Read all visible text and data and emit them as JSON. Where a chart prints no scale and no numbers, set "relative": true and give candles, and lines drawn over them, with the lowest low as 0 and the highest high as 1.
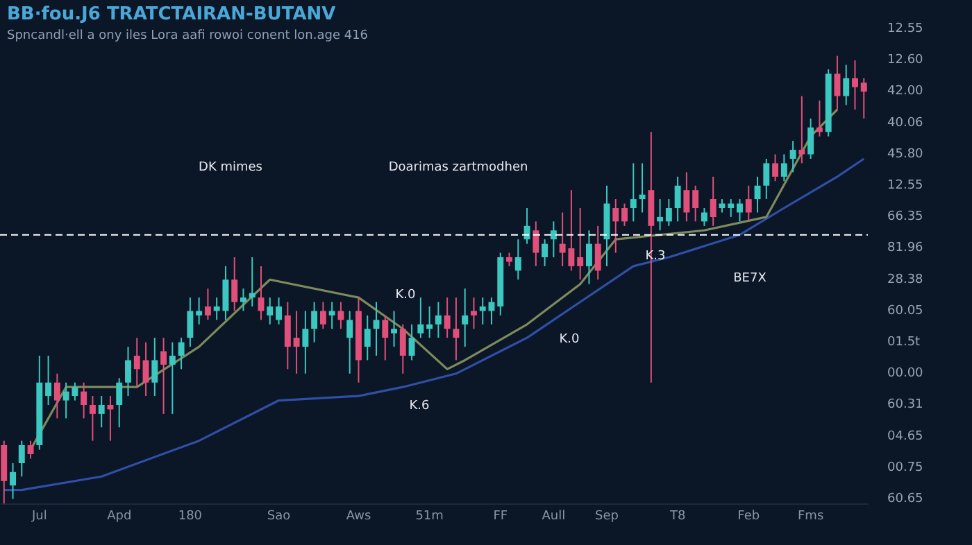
{
  "chart_data": {
    "type": "candlestick",
    "relative": true,
    "title": "BB·fou.J6 TRATCTAIRAN-BUTANV",
    "subtitle": "Spncandl·ell a ony iles Lora aafi rowoi conent lon.age 416",
    "categories": [
      null,
      null,
      null,
      null,
      "Jul",
      null,
      null,
      null,
      null,
      null,
      null,
      null,
      null,
      "Apd",
      null,
      null,
      null,
      null,
      null,
      null,
      null,
      "180",
      null,
      null,
      null,
      null,
      null,
      null,
      null,
      null,
      null,
      "Sao",
      null,
      null,
      null,
      null,
      null,
      null,
      null,
      null,
      "Aws",
      null,
      null,
      null,
      null,
      null,
      null,
      null,
      "51m",
      null,
      null,
      null,
      null,
      null,
      null,
      null,
      "FF",
      null,
      null,
      null,
      null,
      null,
      "Aull",
      null,
      null,
      null,
      null,
      null,
      "Sep",
      null,
      null,
      null,
      null,
      null,
      null,
      null,
      "T8",
      null,
      null,
      null,
      null,
      null,
      null,
      null,
      "Feb",
      null,
      null,
      null,
      null,
      null,
      null,
      "Fms",
      null,
      null,
      null,
      null,
      null,
      null
    ],
    "colors": [
      "#e0507a",
      "#3cc8c0",
      "#3cc8c0",
      "#e0507a",
      "#3cc8c0",
      "#3cc8c0",
      "#e0507a",
      "#3cc8c0",
      "#3cc8c0",
      "#e0507a",
      "#e0507a",
      "#3cc8c0",
      "#e0507a",
      "#3cc8c0",
      "#3cc8c0",
      "#e0507a",
      "#e0507a",
      "#3cc8c0",
      "#e0507a",
      "#3cc8c0",
      "#3cc8c0",
      "#3cc8c0",
      "#3cc8c0",
      "#e0507a",
      "#3cc8c0",
      "#3cc8c0",
      "#e0507a",
      "#3cc8c0",
      "#3cc8c0",
      "#e0507a",
      "#3cc8c0",
      "#3cc8c0",
      "#e0507a",
      "#e0507a",
      "#3cc8c0",
      "#3cc8c0",
      "#e0507a",
      "#3cc8c0",
      "#e0507a",
      "#3cc8c0",
      "#e0507a",
      "#3cc8c0",
      "#3cc8c0",
      "#e0507a",
      "#3cc8c0",
      "#e0507a",
      "#3cc8c0",
      "#3cc8c0",
      "#3cc8c0",
      "#3cc8c0",
      "#e0507a",
      "#e0507a",
      "#3cc8c0",
      "#e0507a",
      "#3cc8c0",
      "#3cc8c0",
      "#3cc8c0",
      "#e0507a",
      "#3cc8c0",
      "#3cc8c0",
      "#e0507a",
      "#3cc8c0",
      "#3cc8c0",
      "#e0507a",
      "#e0507a",
      "#e0507a",
      "#3cc8c0",
      "#e0507a",
      "#3cc8c0",
      "#e0507a",
      "#e0507a",
      "#3cc8c0",
      "#3cc8c0",
      "#e0507a",
      "#3cc8c0",
      "#3cc8c0",
      "#3cc8c0",
      "#e0507a",
      "#e0507a",
      "#3cc8c0",
      "#e0507a",
      "#3cc8c0",
      "#3cc8c0",
      "#3cc8c0",
      "#e0507a",
      "#3cc8c0",
      "#3cc8c0",
      "#e0507a",
      "#3cc8c0",
      "#3cc8c0",
      "#e0507a",
      "#3cc8c0",
      "#e0507a",
      "#3cc8c0",
      "#e0507a",
      "#3cc8c0",
      "#e0507a",
      "#e0507a"
    ],
    "ohlc": [
      [
        0.13,
        0.14,
        0,
        0.05
      ],
      [
        0.04,
        0.09,
        0.01,
        0.07
      ],
      [
        0.09,
        0.14,
        0.06,
        0.13
      ],
      [
        0.13,
        0.14,
        0.1,
        0.11
      ],
      [
        0.13,
        0.33,
        0.12,
        0.27
      ],
      [
        0.24,
        0.33,
        0.22,
        0.27
      ],
      [
        0.27,
        0.29,
        0.19,
        0.23
      ],
      [
        0.23,
        0.27,
        0.19,
        0.25
      ],
      [
        0.24,
        0.27,
        0.23,
        0.26
      ],
      [
        0.25,
        0.27,
        0.19,
        0.22
      ],
      [
        0.22,
        0.24,
        0.14,
        0.2
      ],
      [
        0.2,
        0.24,
        0.17,
        0.22
      ],
      [
        0.22,
        0.24,
        0.14,
        0.21
      ],
      [
        0.22,
        0.28,
        0.17,
        0.27
      ],
      [
        0.27,
        0.35,
        0.24,
        0.32
      ],
      [
        0.33,
        0.37,
        0.26,
        0.3
      ],
      [
        0.32,
        0.36,
        0.24,
        0.27
      ],
      [
        0.27,
        0.37,
        0.24,
        0.32
      ],
      [
        0.34,
        0.37,
        0.2,
        0.31
      ],
      [
        0.31,
        0.36,
        0.2,
        0.33
      ],
      [
        0.33,
        0.37,
        0.3,
        0.36
      ],
      [
        0.37,
        0.46,
        0.35,
        0.43
      ],
      [
        0.42,
        0.46,
        0.4,
        0.43
      ],
      [
        0.44,
        0.48,
        0.41,
        0.42
      ],
      [
        0.43,
        0.46,
        0.41,
        0.44
      ],
      [
        0.43,
        0.53,
        0.41,
        0.5
      ],
      [
        0.5,
        0.55,
        0.43,
        0.45
      ],
      [
        0.45,
        0.48,
        0.43,
        0.46
      ],
      [
        0.46,
        0.55,
        0.44,
        0.47
      ],
      [
        0.46,
        0.53,
        0.41,
        0.43
      ],
      [
        0.42,
        0.46,
        0.4,
        0.44
      ],
      [
        0.41,
        0.46,
        0.4,
        0.44
      ],
      [
        0.42,
        0.45,
        0.3,
        0.35
      ],
      [
        0.37,
        0.43,
        0.29,
        0.35
      ],
      [
        0.35,
        0.43,
        0.29,
        0.39
      ],
      [
        0.39,
        0.45,
        0.36,
        0.43
      ],
      [
        0.43,
        0.45,
        0.39,
        0.4
      ],
      [
        0.42,
        0.45,
        0.39,
        0.43
      ],
      [
        0.43,
        0.45,
        0.39,
        0.41
      ],
      [
        0.37,
        0.43,
        0.29,
        0.41
      ],
      [
        0.43,
        0.46,
        0.27,
        0.32
      ],
      [
        0.35,
        0.42,
        0.32,
        0.39
      ],
      [
        0.39,
        0.45,
        0.33,
        0.41
      ],
      [
        0.41,
        0.42,
        0.32,
        0.37
      ],
      [
        0.38,
        0.43,
        0.35,
        0.39
      ],
      [
        0.39,
        0.4,
        0.29,
        0.33
      ],
      [
        0.33,
        0.4,
        0.32,
        0.37
      ],
      [
        0.38,
        0.46,
        0.37,
        0.4
      ],
      [
        0.39,
        0.44,
        0.37,
        0.4
      ],
      [
        0.4,
        0.45,
        0.37,
        0.42
      ],
      [
        0.42,
        0.46,
        0.37,
        0.39
      ],
      [
        0.39,
        0.46,
        0.32,
        0.37
      ],
      [
        0.4,
        0.48,
        0.35,
        0.42
      ],
      [
        0.43,
        0.46,
        0.39,
        0.42
      ],
      [
        0.43,
        0.46,
        0.4,
        0.44
      ],
      [
        0.43,
        0.46,
        0.4,
        0.45
      ],
      [
        0.44,
        0.56,
        0.42,
        0.55
      ],
      [
        0.55,
        0.56,
        0.53,
        0.54
      ],
      [
        0.52,
        0.59,
        0.5,
        0.55
      ],
      [
        0.59,
        0.66,
        0.58,
        0.62
      ],
      [
        0.61,
        0.63,
        0.53,
        0.56
      ],
      [
        0.55,
        0.59,
        0.53,
        0.58
      ],
      [
        0.59,
        0.63,
        0.55,
        0.61
      ],
      [
        0.58,
        0.65,
        0.53,
        0.56
      ],
      [
        0.57,
        0.7,
        0.52,
        0.53
      ],
      [
        0.55,
        0.66,
        0.5,
        0.53
      ],
      [
        0.53,
        0.61,
        0.49,
        0.58
      ],
      [
        0.58,
        0.62,
        0.5,
        0.52
      ],
      [
        0.59,
        0.71,
        0.53,
        0.67
      ],
      [
        0.66,
        0.68,
        0.56,
        0.63
      ],
      [
        0.66,
        0.67,
        0.62,
        0.63
      ],
      [
        0.66,
        0.76,
        0.63,
        0.68
      ],
      [
        0.68,
        0.76,
        0.65,
        0.69
      ],
      [
        0.7,
        0.83,
        0.27,
        0.62
      ],
      [
        0.63,
        0.68,
        0.61,
        0.64
      ],
      [
        0.63,
        0.68,
        0.62,
        0.66
      ],
      [
        0.66,
        0.73,
        0.63,
        0.71
      ],
      [
        0.7,
        0.74,
        0.63,
        0.65
      ],
      [
        0.7,
        0.71,
        0.63,
        0.66
      ],
      [
        0.63,
        0.66,
        0.62,
        0.65
      ],
      [
        0.68,
        0.73,
        0.62,
        0.64
      ],
      [
        0.66,
        0.68,
        0.65,
        0.67
      ],
      [
        0.66,
        0.68,
        0.64,
        0.67
      ],
      [
        0.65,
        0.68,
        0.63,
        0.67
      ],
      [
        0.68,
        0.71,
        0.63,
        0.65
      ],
      [
        0.68,
        0.73,
        0.65,
        0.71
      ],
      [
        0.71,
        0.77,
        0.68,
        0.76
      ],
      [
        0.76,
        0.78,
        0.72,
        0.73
      ],
      [
        0.73,
        0.78,
        0.72,
        0.76
      ],
      [
        0.77,
        0.81,
        0.74,
        0.79
      ],
      [
        0.79,
        0.91,
        0.76,
        0.78
      ],
      [
        0.78,
        0.86,
        0.77,
        0.84
      ],
      [
        0.84,
        0.9,
        0.82,
        0.83
      ],
      [
        0.83,
        0.97,
        0.82,
        0.96
      ],
      [
        0.96,
        1.0,
        0.88,
        0.91
      ],
      [
        0.91,
        0.98,
        0.89,
        0.95
      ],
      [
        0.95,
        0.99,
        0.88,
        0.93
      ],
      [
        0.94,
        0.95,
        0.86,
        0.92
      ]
    ],
    "series": [
      {
        "type": "line",
        "color": "#2f4fa8",
        "values": [
          0.03,
          null,
          0.03,
          null,
          null,
          null,
          null,
          null,
          null,
          null,
          null,
          0.06,
          null,
          null,
          null,
          null,
          null,
          null,
          null,
          null,
          null,
          null,
          0.14,
          null,
          null,
          null,
          null,
          null,
          null,
          null,
          null,
          0.23,
          null,
          null,
          null,
          null,
          null,
          null,
          null,
          null,
          0.24,
          null,
          null,
          null,
          null,
          0.26,
          null,
          null,
          null,
          null,
          null,
          0.29,
          null,
          null,
          null,
          null,
          0.34,
          null,
          null,
          0.37,
          null,
          null,
          null,
          null,
          null,
          0.45,
          null,
          null,
          null,
          null,
          null,
          0.53,
          null,
          null,
          null,
          0.55,
          null,
          null,
          null,
          null,
          null,
          null,
          null,
          0.6,
          null,
          null,
          null,
          null,
          0.66,
          null,
          null,
          null,
          null,
          null,
          0.73,
          null,
          null,
          0.77
        ]
      },
      {
        "type": "line",
        "color": "#7d8a5c",
        "values": [
          null,
          null,
          null,
          0.12,
          null,
          null,
          null,
          0.26,
          null,
          null,
          null,
          null,
          null,
          null,
          null,
          0.26,
          null,
          null,
          null,
          null,
          null,
          null,
          0.35,
          null,
          null,
          null,
          null,
          null,
          null,
          null,
          0.5,
          null,
          null,
          null,
          null,
          null,
          null,
          null,
          null,
          null,
          0.46,
          null,
          null,
          null,
          null,
          0.39,
          null,
          null,
          null,
          null,
          0.3,
          null,
          0.32,
          null,
          null,
          null,
          null,
          null,
          null,
          0.4,
          null,
          null,
          null,
          null,
          null,
          0.49,
          null,
          null,
          null,
          0.59,
          null,
          null,
          null,
          null,
          null,
          null,
          null,
          null,
          null,
          0.61,
          null,
          null,
          null,
          null,
          null,
          null,
          0.64,
          null,
          null,
          null,
          null,
          0.82,
          null,
          null,
          0.88,
          null,
          null,
          null
        ]
      }
    ],
    "ref_lines": [
      {
        "axis": "y",
        "value": 0.6,
        "color": "#ffffff",
        "line_style": "dashed"
      }
    ],
    "annotations": [
      "DK mimes",
      "Doarimas zartmodhen",
      "K.0",
      "K.6",
      "K.0",
      "K.3",
      "BE7X",
      "12.55",
      "12.60",
      "42.00",
      "40.06",
      "45.80",
      "12.55",
      "66.35",
      "81.96",
      "28.38",
      "60.05",
      "01.5t",
      "00.00",
      "60.31",
      "04.65",
      "00.75",
      "60.65"
    ],
    "grid": false
  }
}
